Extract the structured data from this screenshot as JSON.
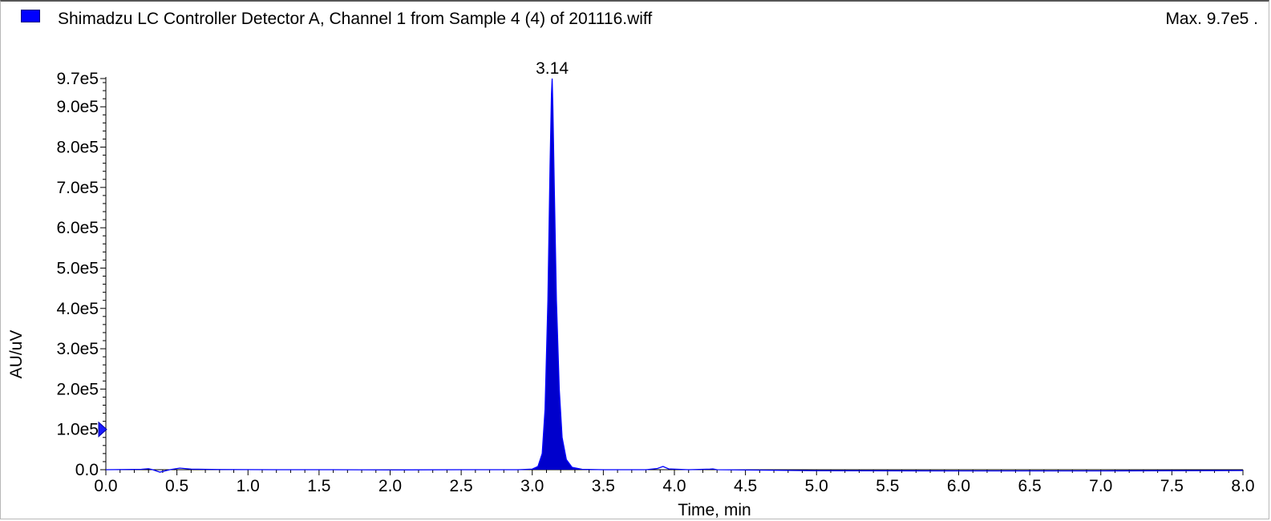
{
  "header": {
    "legend_color": "#0000ff",
    "trace_title": "Shimadzu LC Controller Detector A, Channel 1 from Sample 4 (4) of 201116.wiff",
    "max_label": "Max. 9.7e5 ."
  },
  "chart_data": {
    "type": "line",
    "title": "",
    "xlabel": "Time, min",
    "ylabel": "AU/uV",
    "xlim": [
      0.0,
      8.0
    ],
    "ylim": [
      0.0,
      970000
    ],
    "x_ticks": [
      "0.0",
      "0.5",
      "1.0",
      "1.5",
      "2.0",
      "2.5",
      "3.0",
      "3.5",
      "4.0",
      "4.5",
      "5.0",
      "5.5",
      "6.0",
      "6.5",
      "7.0",
      "7.5",
      "8.0"
    ],
    "y_ticks": [
      {
        "value": 0,
        "label": "0.0"
      },
      {
        "value": 100000,
        "label": "1.0e5"
      },
      {
        "value": 200000,
        "label": "2.0e5"
      },
      {
        "value": 300000,
        "label": "3.0e5"
      },
      {
        "value": 400000,
        "label": "4.0e5"
      },
      {
        "value": 500000,
        "label": "5.0e5"
      },
      {
        "value": 600000,
        "label": "6.0e5"
      },
      {
        "value": 700000,
        "label": "7.0e5"
      },
      {
        "value": 800000,
        "label": "8.0e5"
      },
      {
        "value": 900000,
        "label": "9.0e5"
      },
      {
        "value": 970000,
        "label": "9.7e5"
      }
    ],
    "threshold_marker_value": 100000,
    "series": [
      {
        "color": "#0000ff",
        "fill_color": "#0000cc",
        "x": [
          0.0,
          0.25,
          0.3,
          0.33,
          0.38,
          0.45,
          0.52,
          0.6,
          0.8,
          1.2,
          1.6,
          2.0,
          2.5,
          2.9,
          3.0,
          3.04,
          3.07,
          3.09,
          3.11,
          3.125,
          3.135,
          3.14,
          3.145,
          3.155,
          3.17,
          3.19,
          3.21,
          3.24,
          3.28,
          3.35,
          3.5,
          3.8,
          3.88,
          3.92,
          3.96,
          4.1,
          4.25,
          4.27,
          4.3,
          4.6,
          5.0,
          6.0,
          7.0,
          8.0
        ],
        "y": [
          0,
          1000,
          2500,
          0,
          -6000,
          0,
          4000,
          1500,
          500,
          0,
          0,
          -500,
          0,
          0,
          1500,
          8000,
          40000,
          150000,
          420000,
          750000,
          930000,
          970000,
          900000,
          700000,
          420000,
          200000,
          80000,
          25000,
          6000,
          1000,
          0,
          0,
          3000,
          8000,
          2000,
          0,
          1500,
          2000,
          0,
          -1000,
          -2500,
          -3000,
          -3000,
          -2000
        ]
      }
    ],
    "peak_labels": [
      {
        "x": 3.14,
        "y": 970000,
        "label": "3.14"
      }
    ]
  }
}
